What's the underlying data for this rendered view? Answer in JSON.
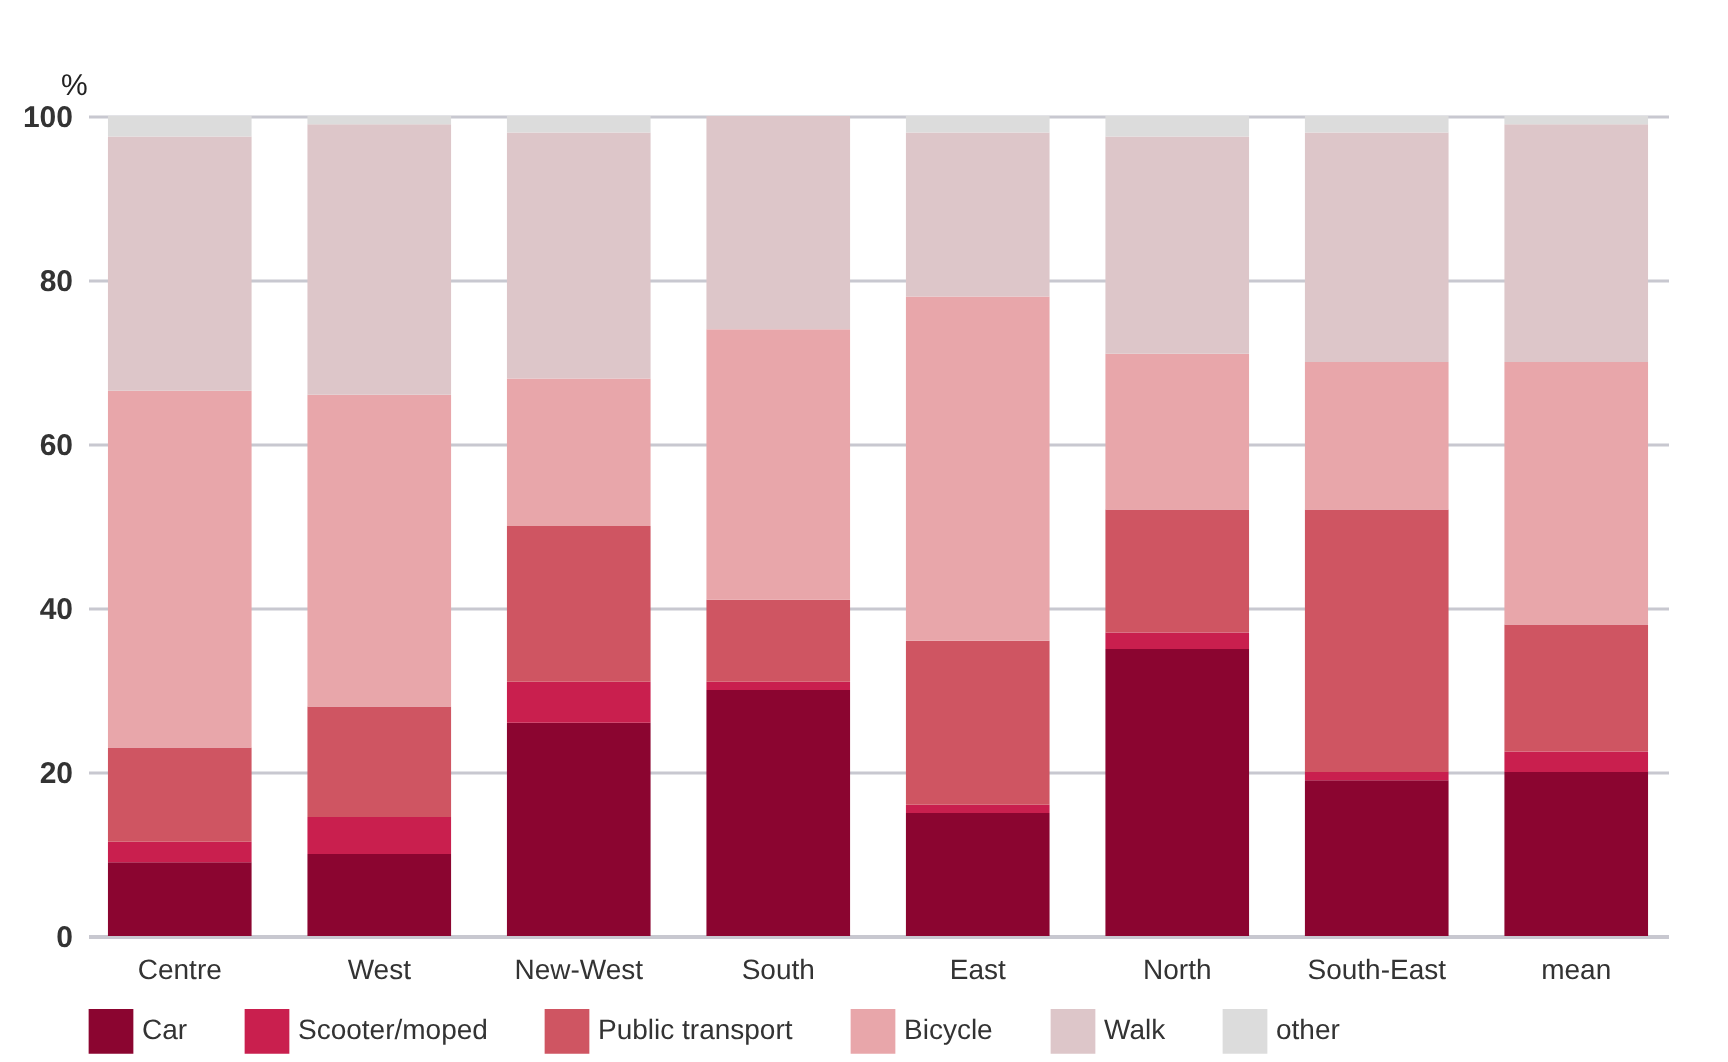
{
  "chart_data": {
    "type": "bar",
    "stacked": true,
    "ylabel": "%",
    "categories": [
      "Centre",
      "West",
      "New-West",
      "South",
      "East",
      "North",
      "South-East",
      "mean"
    ],
    "series": [
      {
        "name": "Car",
        "color": "#8b0530",
        "values": [
          9,
          10,
          26,
          30,
          15,
          35,
          19,
          20
        ]
      },
      {
        "name": "Scooter/moped",
        "color": "#c91f4e",
        "values": [
          2.5,
          4.5,
          5,
          1,
          1,
          2,
          1,
          2.5
        ]
      },
      {
        "name": "Public transport",
        "color": "#cf5562",
        "values": [
          11.5,
          13.5,
          19,
          10,
          20,
          15,
          32,
          15.5
        ]
      },
      {
        "name": "Bicycle",
        "color": "#e8a6aa",
        "values": [
          43.5,
          38,
          18,
          33,
          42,
          19,
          18,
          32
        ]
      },
      {
        "name": "Walk",
        "color": "#ddc6c9",
        "values": [
          31,
          33,
          30,
          26,
          20,
          26.5,
          28,
          29
        ]
      },
      {
        "name": "other",
        "color": "#dcdcdc",
        "values": [
          2.5,
          1,
          2,
          0,
          2,
          2.5,
          2,
          1
        ]
      }
    ],
    "ylim": [
      0,
      100
    ],
    "yticks": [
      0,
      20,
      40,
      60,
      80,
      100
    ],
    "grid": "y",
    "legend": "bottom"
  }
}
